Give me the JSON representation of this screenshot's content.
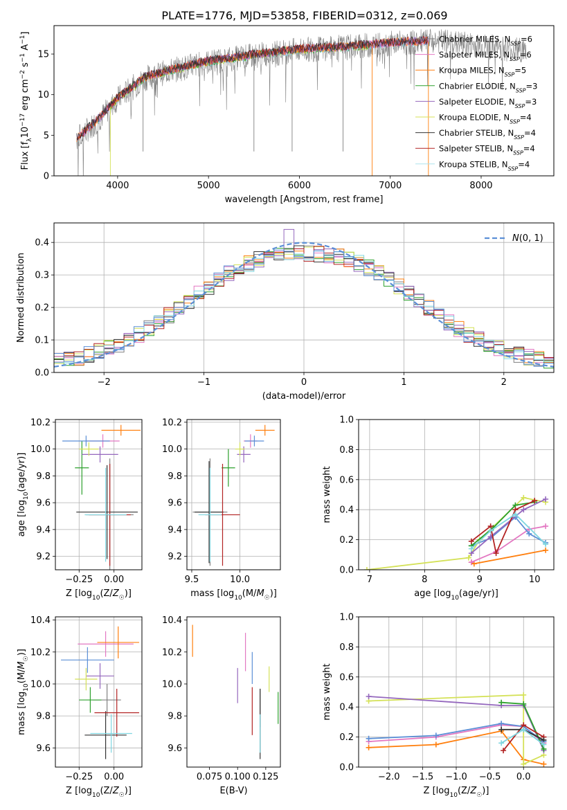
{
  "figure_title": "PLATE=1776, MJD=53858, FIBERID=0312, z=0.069",
  "colors": {
    "s0": "#808080",
    "s1": "#e377c2",
    "s2": "#ff7f0e",
    "s3": "#2ca02c",
    "s4": "#9467bd",
    "s5": "#d4e157",
    "s6": "#333333",
    "s7": "#b22222",
    "s8": "#7fd6e0",
    "normal": "#5b8fd6"
  },
  "chart_data": [
    {
      "id": "spectrum",
      "type": "line",
      "xlabel": "wavelength [Angstrom, rest frame]",
      "ylabel": "Flux [f_λ 10^-17 erg cm^-2 s^-1 A^-1]",
      "xlim": [
        3300,
        8800
      ],
      "ylim": [
        0,
        18.5
      ],
      "xticks": [
        4000,
        5000,
        6000,
        7000,
        8000
      ],
      "yticks": [
        0,
        5,
        10,
        15
      ],
      "grid": false,
      "legend_position": "right",
      "legend": [
        {
          "name": "Chabrier MILES",
          "nssp": "6"
        },
        {
          "name": "Salpeter MILES",
          "nssp": "6"
        },
        {
          "name": "Kroupa MILES",
          "nssp": "5"
        },
        {
          "name": "Chabrier ELODIE",
          "nssp": "3"
        },
        {
          "name": "Salpeter ELODIE",
          "nssp": "3"
        },
        {
          "name": "Kroupa ELODIE",
          "nssp": "4"
        },
        {
          "name": "Chabrier STELIB",
          "nssp": "4"
        },
        {
          "name": "Salpeter STELIB",
          "nssp": "4"
        },
        {
          "name": "Kroupa STELIB",
          "nssp": "4"
        }
      ],
      "continuum": {
        "x": [
          3550,
          3800,
          4000,
          4300,
          4600,
          5000,
          5500,
          6000,
          6500,
          7000,
          7400,
          7500
        ],
        "y": [
          4.5,
          7,
          9.5,
          12,
          13,
          14,
          14.8,
          15.5,
          15.8,
          16.3,
          16.5,
          16.6
        ]
      },
      "data_extent": [
        3550,
        8500
      ],
      "model_extent_miles": [
        3550,
        7420
      ],
      "model_extent_elodie": [
        3920,
        6800
      ]
    },
    {
      "id": "residuals",
      "type": "bar",
      "xlabel": "(data-model)/error",
      "ylabel": "Normed distribution",
      "xlim": [
        -2.5,
        2.5
      ],
      "ylim": [
        0,
        0.46
      ],
      "xticks": [
        -2,
        -1,
        0,
        1,
        2
      ],
      "yticks": [
        0.0,
        0.1,
        0.2,
        0.3,
        0.4
      ],
      "grid": true,
      "legend_position": "top-right",
      "legend": [
        "N(0,1)"
      ],
      "bin_width": 0.1
    },
    {
      "id": "age_vs_Z",
      "type": "scatter",
      "xlabel": "Z [log10(Z/Z☉)]",
      "ylabel": "age [log10(age/yr)]",
      "xlim": [
        -0.42,
        0.2
      ],
      "ylim": [
        9.1,
        10.22
      ],
      "xticks": [
        -0.25,
        0.0
      ],
      "yticks": [
        9.2,
        9.4,
        9.6,
        9.8,
        10.0,
        10.2
      ],
      "grid": true,
      "points": [
        {
          "s": "s0",
          "x": -0.03,
          "y": 9.51,
          "xe": 0.17,
          "ye": 0.42
        },
        {
          "s": "s1",
          "x": -0.08,
          "y": 10.06,
          "xe": 0.12,
          "ye": 0.05
        },
        {
          "s": "s2",
          "x": 0.05,
          "y": 10.14,
          "xe": 0.14,
          "ye": 0.04
        },
        {
          "s": "s3",
          "x": -0.23,
          "y": 9.86,
          "xe": 0.05,
          "ye": 0.2
        },
        {
          "s": "s4",
          "x": -0.1,
          "y": 9.96,
          "xe": 0.13,
          "ye": 0.06
        },
        {
          "s": "s5",
          "x": -0.18,
          "y": 10.0,
          "xe": 0.07,
          "ye": 0.05
        },
        {
          "s": "s6",
          "x": -0.05,
          "y": 9.53,
          "xe": 0.22,
          "ye": 0.35
        },
        {
          "s": "s7",
          "x": -0.03,
          "y": 9.51,
          "xe": 0.15,
          "ye": 0.38
        },
        {
          "s": "s8",
          "x": -0.06,
          "y": 9.51,
          "xe": 0.15,
          "ye": 0.35
        },
        {
          "s": "normal",
          "x": -0.2,
          "y": 10.06,
          "xe": 0.17,
          "ye": 0.04
        }
      ]
    },
    {
      "id": "age_vs_mass",
      "type": "scatter",
      "xlabel": "mass [log10(M/M☉)]",
      "ylabel": "",
      "xlim": [
        9.45,
        10.42
      ],
      "ylim": [
        9.1,
        10.22
      ],
      "xticks": [
        9.5,
        10.0
      ],
      "yticks": [
        9.2,
        9.4,
        9.6,
        9.8,
        10.0,
        10.2
      ],
      "grid": true,
      "points": [
        {
          "s": "s0",
          "x": 9.69,
          "y": 9.53,
          "xe": 0.18,
          "ye": 0.4
        },
        {
          "s": "s1",
          "x": 10.11,
          "y": 10.06,
          "xe": 0.07,
          "ye": 0.05
        },
        {
          "s": "s2",
          "x": 10.26,
          "y": 10.14,
          "xe": 0.1,
          "ye": 0.04
        },
        {
          "s": "s3",
          "x": 9.88,
          "y": 9.86,
          "xe": 0.07,
          "ye": 0.14
        },
        {
          "s": "s4",
          "x": 10.04,
          "y": 9.96,
          "xe": 0.07,
          "ye": 0.06
        },
        {
          "s": "s5",
          "x": 10.0,
          "y": 10.0,
          "xe": 0.05,
          "ye": 0.05
        },
        {
          "s": "s6",
          "x": 9.68,
          "y": 9.53,
          "xe": 0.15,
          "ye": 0.38
        },
        {
          "s": "s7",
          "x": 9.82,
          "y": 9.51,
          "xe": 0.18,
          "ye": 0.38
        },
        {
          "s": "s8",
          "x": 9.69,
          "y": 9.51,
          "xe": 0.12,
          "ye": 0.35
        },
        {
          "s": "normal",
          "x": 10.15,
          "y": 10.06,
          "xe": 0.1,
          "ye": 0.04
        }
      ]
    },
    {
      "id": "mass_weight_vs_age",
      "type": "line",
      "xlabel": "age [log10(age/yr)]",
      "ylabel": "mass weight",
      "xlim": [
        6.8,
        10.35
      ],
      "ylim": [
        0,
        1.0
      ],
      "xticks": [
        7,
        8,
        9,
        10
      ],
      "yticks": [
        0.0,
        0.2,
        0.4,
        0.6,
        0.8,
        1.0
      ],
      "grid": true,
      "series": [
        {
          "s": "s2",
          "x": [
            8.85,
            8.9,
            10.2
          ],
          "y": [
            0.05,
            0.04,
            0.13
          ]
        },
        {
          "s": "s1",
          "x": [
            8.85,
            9.3,
            9.9,
            10.2
          ],
          "y": [
            0.05,
            0.12,
            0.27,
            0.29
          ]
        },
        {
          "s": "normal",
          "x": [
            8.85,
            9.2,
            9.65,
            9.9,
            10.2
          ],
          "y": [
            0.16,
            0.21,
            0.35,
            0.24,
            0.18
          ]
        },
        {
          "s": "s5",
          "x": [
            6.95,
            8.8,
            9.0,
            9.8,
            10.2
          ],
          "y": [
            0.0,
            0.08,
            0.2,
            0.48,
            0.45
          ]
        },
        {
          "s": "s3",
          "x": [
            8.85,
            9.25,
            9.65,
            10.0
          ],
          "y": [
            0.16,
            0.28,
            0.43,
            0.45
          ]
        },
        {
          "s": "s4",
          "x": [
            8.85,
            9.2,
            9.8,
            10.2
          ],
          "y": [
            0.11,
            0.22,
            0.4,
            0.47
          ]
        },
        {
          "s": "s7",
          "x": [
            8.85,
            9.2,
            9.3,
            9.65,
            10.0
          ],
          "y": [
            0.19,
            0.29,
            0.11,
            0.4,
            0.46
          ]
        },
        {
          "s": "s8",
          "x": [
            8.85,
            9.2,
            9.65,
            10.2
          ],
          "y": [
            0.14,
            0.26,
            0.37,
            0.17
          ]
        }
      ]
    },
    {
      "id": "mass_vs_Z",
      "type": "scatter",
      "xlabel": "Z [log10(Z/Z☉)]",
      "ylabel": "mass [log10(M/M☉)]",
      "xlim": [
        -0.42,
        0.2
      ],
      "ylim": [
        9.48,
        10.42
      ],
      "xticks": [
        -0.25,
        0.0
      ],
      "yticks": [
        9.6,
        9.8,
        10.0,
        10.2,
        10.4
      ],
      "grid": true,
      "points": [
        {
          "s": "s0",
          "x": -0.05,
          "y": 9.9,
          "xe": 0.1,
          "ye": 0.1
        },
        {
          "s": "s1",
          "x": -0.06,
          "y": 10.25,
          "xe": 0.2,
          "ye": 0.08
        },
        {
          "s": "s2",
          "x": 0.03,
          "y": 10.26,
          "xe": 0.15,
          "ye": 0.1
        },
        {
          "s": "s3",
          "x": -0.17,
          "y": 9.9,
          "xe": 0.08,
          "ye": 0.08
        },
        {
          "s": "s4",
          "x": -0.1,
          "y": 10.05,
          "xe": 0.1,
          "ye": 0.08
        },
        {
          "s": "s5",
          "x": -0.2,
          "y": 10.03,
          "xe": 0.08,
          "ye": 0.07
        },
        {
          "s": "s6",
          "x": -0.06,
          "y": 9.68,
          "xe": 0.15,
          "ye": 0.15
        },
        {
          "s": "s7",
          "x": 0.02,
          "y": 9.82,
          "xe": 0.16,
          "ye": 0.15
        },
        {
          "s": "s8",
          "x": -0.02,
          "y": 9.69,
          "xe": 0.15,
          "ye": 0.12
        },
        {
          "s": "normal",
          "x": -0.19,
          "y": 10.15,
          "xe": 0.19,
          "ye": 0.08
        }
      ]
    },
    {
      "id": "mass_vs_ebv",
      "type": "scatter",
      "xlabel": "E(B-V)",
      "ylabel": "",
      "xlim": [
        0.055,
        0.138
      ],
      "ylim": [
        9.48,
        10.42
      ],
      "xticks": [
        0.075,
        0.1,
        0.125
      ],
      "yticks": [
        9.6,
        9.8,
        10.0,
        10.2,
        10.4
      ],
      "grid": false,
      "points": [
        {
          "s": "s0",
          "x": 0.12,
          "y": 9.85,
          "xe": 0,
          "ye": 0.12
        },
        {
          "s": "s1",
          "x": 0.107,
          "y": 10.2,
          "xe": 0,
          "ye": 0.12
        },
        {
          "s": "s2",
          "x": 0.06,
          "y": 10.27,
          "xe": 0,
          "ye": 0.1
        },
        {
          "s": "s3",
          "x": 0.136,
          "y": 9.85,
          "xe": 0,
          "ye": 0.1
        },
        {
          "s": "s4",
          "x": 0.1,
          "y": 9.99,
          "xe": 0,
          "ye": 0.11
        },
        {
          "s": "s5",
          "x": 0.128,
          "y": 10.03,
          "xe": 0,
          "ye": 0.08
        },
        {
          "s": "s6",
          "x": 0.12,
          "y": 9.75,
          "xe": 0,
          "ye": 0.22
        },
        {
          "s": "s7",
          "x": 0.113,
          "y": 9.83,
          "xe": 0,
          "ye": 0.15
        },
        {
          "s": "s8",
          "x": 0.12,
          "y": 9.69,
          "xe": 0,
          "ye": 0.12
        },
        {
          "s": "normal",
          "x": 0.113,
          "y": 10.1,
          "xe": 0,
          "ye": 0.1
        }
      ]
    },
    {
      "id": "mass_weight_vs_Z",
      "type": "line",
      "xlabel": "Z [log10(Z/Z☉)]",
      "ylabel": "mass weight",
      "xlim": [
        -2.45,
        0.45
      ],
      "ylim": [
        0,
        1.0
      ],
      "xticks": [
        -2.0,
        -1.5,
        -1.0,
        -0.5,
        0.0
      ],
      "yticks": [
        0.0,
        0.2,
        0.4,
        0.6,
        0.8,
        1.0
      ],
      "grid": true,
      "series": [
        {
          "s": "s2",
          "x": [
            -2.3,
            -1.3,
            -0.33,
            0.0,
            0.3
          ],
          "y": [
            0.13,
            0.15,
            0.24,
            0.05,
            0.02
          ]
        },
        {
          "s": "s1",
          "x": [
            -2.3,
            -1.3,
            -0.33,
            0.0,
            0.3
          ],
          "y": [
            0.17,
            0.2,
            0.28,
            0.27,
            0.16
          ]
        },
        {
          "s": "normal",
          "x": [
            -2.3,
            -1.3,
            -0.33,
            0.0,
            0.3
          ],
          "y": [
            0.19,
            0.21,
            0.29,
            0.27,
            0.17
          ]
        },
        {
          "s": "s5",
          "x": [
            -2.3,
            0.0,
            0.0,
            0.3
          ],
          "y": [
            0.44,
            0.48,
            0.02,
            0.08
          ]
        },
        {
          "s": "s4",
          "x": [
            -2.3,
            -0.33,
            0.0,
            0.3
          ],
          "y": [
            0.47,
            0.41,
            0.41,
            0.11
          ]
        },
        {
          "s": "s3",
          "x": [
            -0.33,
            0.0,
            0.3
          ],
          "y": [
            0.43,
            0.42,
            0.12
          ]
        },
        {
          "s": "s7",
          "x": [
            -0.3,
            0.0,
            0.3
          ],
          "y": [
            0.11,
            0.28,
            0.2
          ]
        },
        {
          "s": "s6",
          "x": [
            -0.33,
            0.0,
            0.3
          ],
          "y": [
            0.25,
            0.25,
            0.18
          ]
        },
        {
          "s": "s8",
          "x": [
            -0.33,
            0.0,
            0.3
          ],
          "y": [
            0.16,
            0.25,
            0.15
          ]
        }
      ]
    }
  ]
}
